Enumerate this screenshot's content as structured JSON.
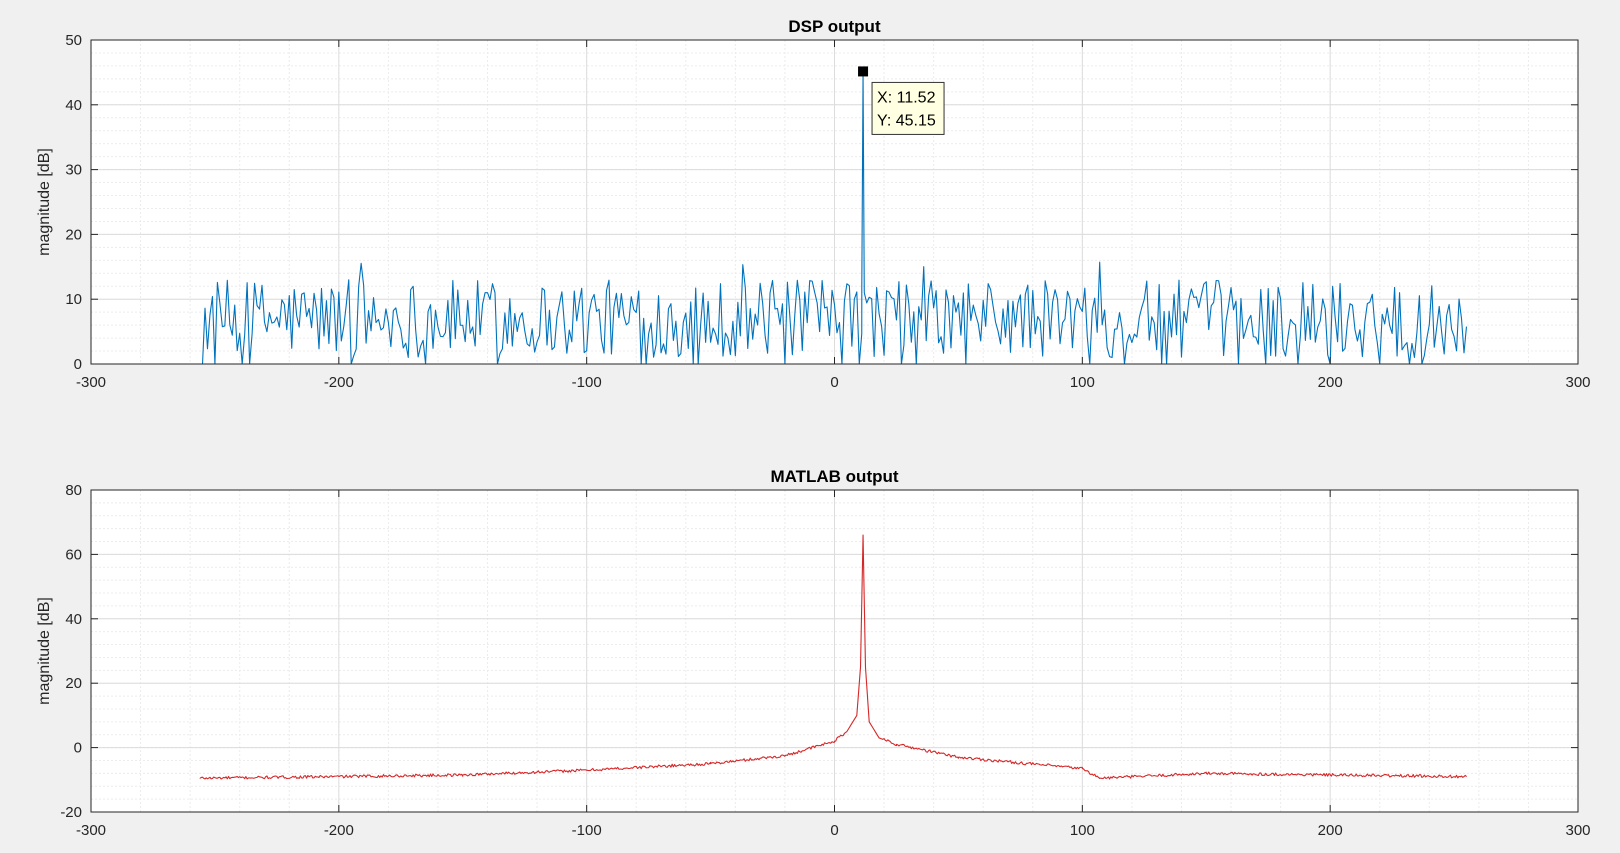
{
  "window": {
    "background": "#f0f0f0"
  },
  "chart_data": [
    {
      "type": "line",
      "title": "DSP output",
      "xlabel": "",
      "ylabel": "magnitude [dB]",
      "xlim": [
        -300,
        300
      ],
      "ylim": [
        0,
        50
      ],
      "xticks": [
        -300,
        -200,
        -100,
        0,
        100,
        200,
        300
      ],
      "yticks": [
        0,
        10,
        20,
        30,
        40,
        50
      ],
      "xtick_labels": [
        "-300",
        "-200",
        "-100",
        "0",
        "100",
        "200",
        "300"
      ],
      "ytick_labels": [
        "0",
        "10",
        "20",
        "30",
        "40",
        "50"
      ],
      "grid": true,
      "minor_grid": true,
      "color": "#0072bd",
      "series": [
        {
          "style": "noisy-spectrum",
          "x_start": -256,
          "x_end": 255,
          "noise_mean_db": 7,
          "noise_floor_db": 0,
          "noise_peak_db": 16,
          "peak": {
            "x": 11.52,
            "y": 45.15
          }
        }
      ],
      "datatip": {
        "x": 11.52,
        "y": 45.15,
        "x_label": "X: 11.52",
        "y_label": "Y: 45.15"
      }
    },
    {
      "type": "line",
      "title": "MATLAB output",
      "xlabel": "",
      "ylabel": "magnitude [dB]",
      "xlim": [
        -300,
        300
      ],
      "ylim": [
        -20,
        80
      ],
      "xticks": [
        -300,
        -200,
        -100,
        0,
        100,
        200,
        300
      ],
      "yticks": [
        -20,
        0,
        20,
        40,
        60,
        80
      ],
      "xtick_labels": [
        "-300",
        "-200",
        "-100",
        "0",
        "100",
        "200",
        "300"
      ],
      "ytick_labels": [
        "-20",
        "0",
        "20",
        "40",
        "60",
        "80"
      ],
      "grid": true,
      "minor_grid": true,
      "color": "#d62728",
      "series": [
        {
          "style": "smooth-spectrum",
          "x": [
            -256,
            -200,
            -150,
            -100,
            -50,
            -20,
            0,
            5,
            9,
            10.5,
            11.52,
            12.5,
            14,
            18,
            25,
            50,
            100,
            107,
            150,
            200,
            255
          ],
          "y": [
            -9.5,
            -9,
            -8.5,
            -7,
            -5,
            -2.5,
            2,
            5,
            10,
            25,
            66,
            25,
            8,
            3,
            1,
            -3,
            -6.5,
            -9.5,
            -8,
            -8.5,
            -9
          ]
        }
      ]
    }
  ]
}
